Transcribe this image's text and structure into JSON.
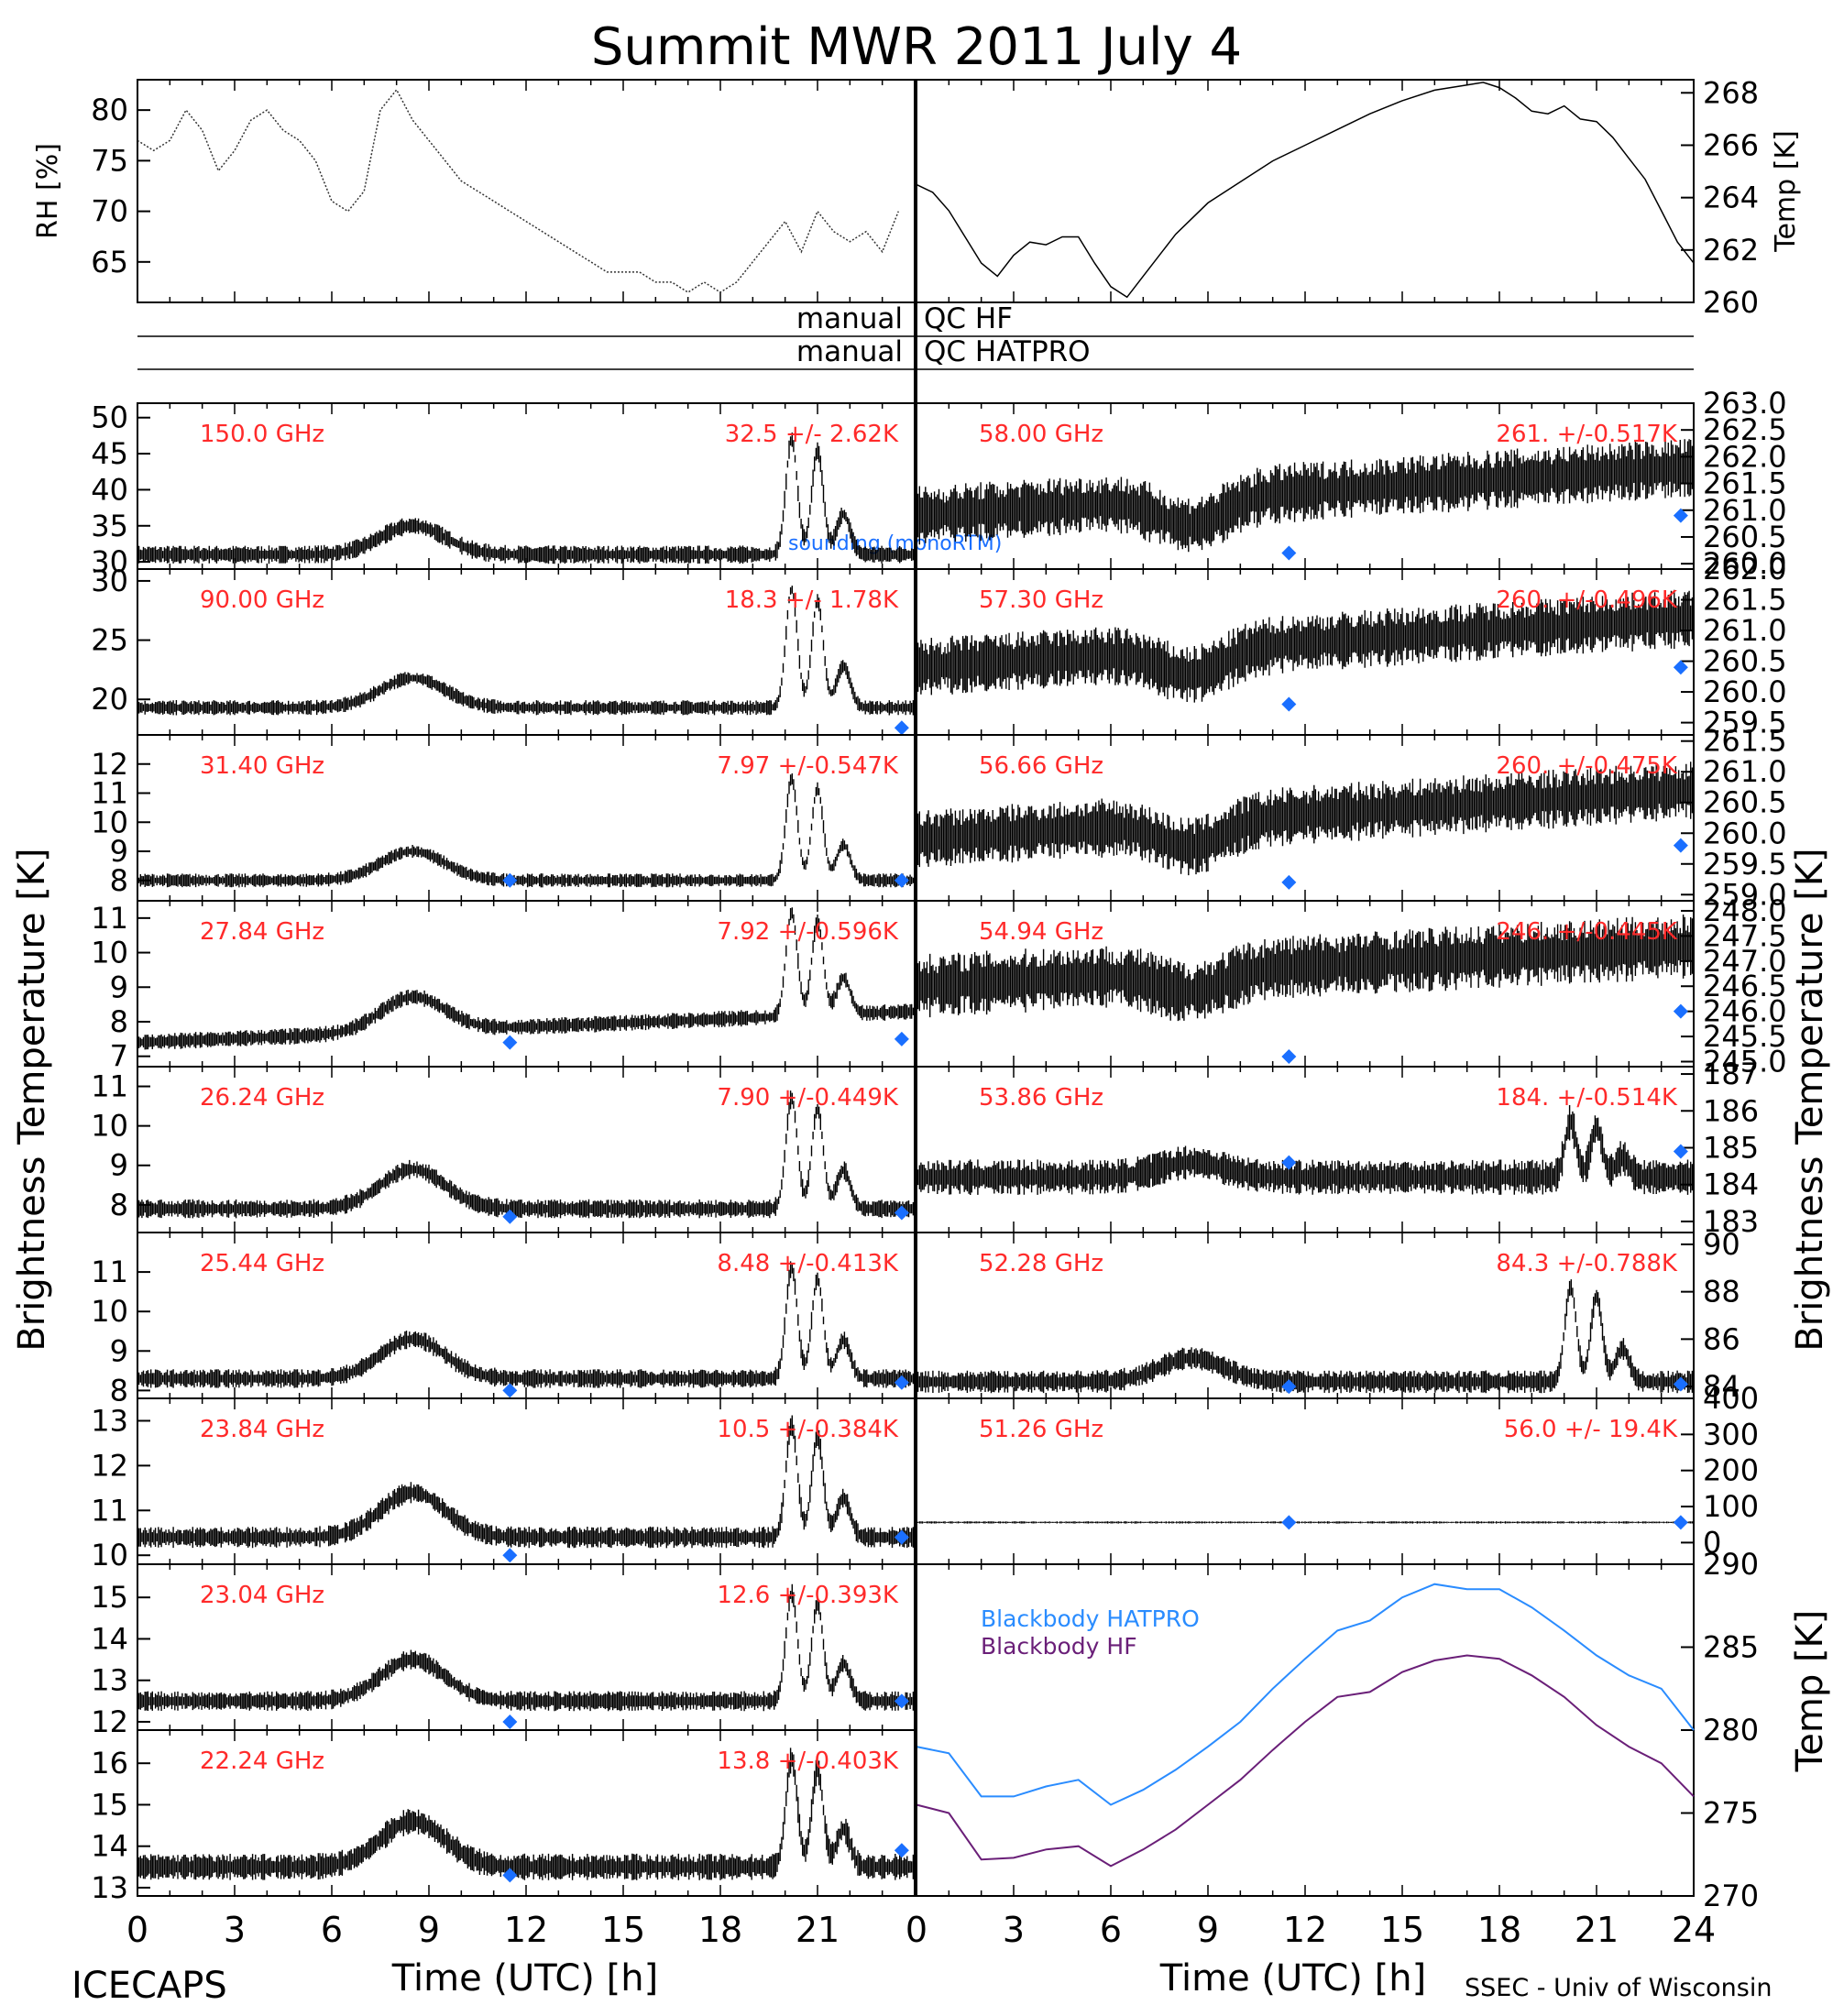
{
  "figure": {
    "title": "Summit MWR 2011 July  4",
    "footer_left": "ICECAPS",
    "footer_right": "SSEC - Univ of Wisconsin",
    "xlabel": "Time (UTC) [h]",
    "left_axis_label": "Brightness Temperature [K]",
    "right_axis_label": "Brightness Temperature [K]",
    "bottom_right_axis_label": "Temp [K]"
  },
  "colors": {
    "frequency_label": "#ff2a2a",
    "sounding_marker": "#1a6fff",
    "blackbody_hatpro": "#2a8cff",
    "blackbody_hf": "#6a1f78",
    "ink": "#000000"
  },
  "qc": {
    "hf_left": "manual",
    "hf_right": "QC HF",
    "hatpro_left": "manual",
    "hatpro_right": "QC HATPRO"
  },
  "legend": {
    "sounding_label": "sounding (monoRTM)"
  },
  "chart_data": [
    {
      "id": "rh",
      "type": "line",
      "side": "left",
      "ylabel": "RH [%]",
      "ylim": [
        61,
        83
      ],
      "yticks": [
        65,
        70,
        75,
        80
      ],
      "x": [
        0,
        0.5,
        1,
        1.5,
        2,
        2.5,
        3,
        3.5,
        4,
        4.5,
        5,
        5.5,
        6,
        6.5,
        7,
        7.5,
        8,
        8.5,
        9,
        9.5,
        10,
        10.5,
        11,
        11.5,
        12,
        12.5,
        13,
        13.5,
        14,
        14.5,
        15,
        15.5,
        16,
        16.5,
        17,
        17.5,
        18,
        18.5,
        19,
        19.5,
        20,
        20.5,
        21,
        21.5,
        22,
        22.5,
        23,
        23.5
      ],
      "y": [
        77,
        76,
        77,
        80,
        78,
        74,
        76,
        79,
        80,
        78,
        77,
        75,
        71,
        70,
        72,
        80,
        82,
        79,
        77,
        75,
        73,
        72,
        71,
        70,
        69,
        68,
        67,
        66,
        65,
        64,
        64,
        64,
        63,
        63,
        62,
        63,
        62,
        63,
        65,
        67,
        69,
        66,
        70,
        68,
        67,
        68,
        66,
        70
      ]
    },
    {
      "id": "temp",
      "type": "line",
      "side": "right",
      "ylabel": "Temp [K]",
      "ylim": [
        260,
        268.5
      ],
      "yticks": [
        260,
        262,
        264,
        266,
        268
      ],
      "x": [
        0,
        0.5,
        1,
        1.5,
        2,
        2.5,
        3,
        3.5,
        4,
        4.5,
        5,
        5.5,
        6,
        6.5,
        7,
        8,
        9,
        10,
        11,
        12,
        13,
        14,
        15,
        16,
        17,
        17.5,
        18,
        18.5,
        19,
        19.5,
        20,
        20.5,
        21,
        21.5,
        22,
        22.5,
        23,
        23.5,
        24
      ],
      "y": [
        264.5,
        264.2,
        263.5,
        262.5,
        261.5,
        261,
        261.8,
        262.3,
        262.2,
        262.5,
        262.5,
        261.5,
        260.6,
        260.2,
        261,
        262.6,
        263.8,
        264.6,
        265.4,
        266,
        266.6,
        267.2,
        267.7,
        268.1,
        268.3,
        268.4,
        268.2,
        267.8,
        267.3,
        267.2,
        267.5,
        267,
        266.9,
        266.3,
        265.5,
        264.7,
        263.5,
        262.3,
        261.5
      ]
    },
    {
      "id": "bb",
      "type": "line",
      "side": "right",
      "ylabel": "Temp [K]",
      "ylim": [
        270,
        290
      ],
      "yticks": [
        270,
        275,
        280,
        285,
        290
      ],
      "series": [
        {
          "name": "Blackbody HATPRO",
          "x": [
            0,
            1,
            2,
            3,
            4,
            5,
            6,
            7,
            8,
            9,
            10,
            11,
            12,
            13,
            14,
            15,
            16,
            17,
            18,
            19,
            20,
            21,
            22,
            23,
            24
          ],
          "y": [
            279,
            278.6,
            276,
            276,
            276.6,
            277,
            275.5,
            276.4,
            277.6,
            279,
            280.5,
            282.5,
            284.3,
            286,
            286.6,
            288,
            288.8,
            288.5,
            288.5,
            287.4,
            286,
            284.5,
            283.3,
            282.5,
            280
          ]
        },
        {
          "name": "Blackbody HF",
          "x": [
            0,
            1,
            2,
            3,
            4,
            5,
            6,
            7,
            8,
            9,
            10,
            11,
            12,
            13,
            14,
            15,
            16,
            17,
            18,
            19,
            20,
            21,
            22,
            23,
            24
          ],
          "y": [
            275.5,
            275,
            272.2,
            272.3,
            272.8,
            273,
            271.8,
            272.8,
            274,
            275.5,
            277,
            278.8,
            280.5,
            282,
            282.3,
            283.5,
            284.2,
            284.5,
            284.3,
            283.3,
            282,
            280.3,
            279,
            278,
            276
          ]
        }
      ]
    },
    {
      "id": "hf150",
      "type": "scatter",
      "side": "left",
      "freq": "150.0 GHz",
      "stat": "32.5 +/-  2.62K",
      "ylim": [
        29,
        52
      ],
      "yticks": [
        30,
        35,
        40,
        45,
        50
      ],
      "base": 31,
      "bump": 4,
      "peak": 16,
      "noise": 0.8,
      "drift": 0,
      "sounding": []
    },
    {
      "id": "hf90",
      "type": "scatter",
      "side": "left",
      "freq": "90.00 GHz",
      "stat": "18.3 +/-  1.78K",
      "ylim": [
        17,
        31
      ],
      "yticks": [
        20,
        25,
        30
      ],
      "base": 19.3,
      "bump": 2.5,
      "peak": 10,
      "noise": 0.4,
      "drift": 0,
      "sounding": [
        [
          23.6,
          17.6
        ]
      ]
    },
    {
      "id": "k3140",
      "type": "scatter",
      "side": "left",
      "freq": "31.40 GHz",
      "stat": "7.97 +/-0.547K",
      "ylim": [
        7.3,
        13
      ],
      "yticks": [
        8,
        9,
        10,
        11,
        12
      ],
      "base": 8,
      "bump": 1,
      "peak": 3.5,
      "noise": 0.15,
      "drift": 0,
      "sounding": [
        [
          11.5,
          8.0
        ],
        [
          23.6,
          8.0
        ]
      ]
    },
    {
      "id": "k2784",
      "type": "scatter",
      "side": "left",
      "freq": "27.84 GHz",
      "stat": "7.92 +/-0.596K",
      "ylim": [
        6.7,
        11.5
      ],
      "yticks": [
        7,
        8,
        9,
        10,
        11
      ],
      "base": 7.4,
      "bump": 1,
      "peak": 3,
      "noise": 0.15,
      "drift": 0.9,
      "sounding": [
        [
          11.5,
          7.4
        ],
        [
          23.6,
          7.5
        ]
      ]
    },
    {
      "id": "k2624",
      "type": "scatter",
      "side": "left",
      "freq": "26.24 GHz",
      "stat": "7.90 +/-0.449K",
      "ylim": [
        7.3,
        11.5
      ],
      "yticks": [
        8,
        9,
        10,
        11
      ],
      "base": 7.9,
      "bump": 1,
      "peak": 2.8,
      "noise": 0.15,
      "drift": 0,
      "sounding": [
        [
          11.5,
          7.7
        ],
        [
          23.6,
          7.8
        ]
      ]
    },
    {
      "id": "k2544",
      "type": "scatter",
      "side": "left",
      "freq": "25.44 GHz",
      "stat": "8.48 +/-0.413K",
      "ylim": [
        7.8,
        12
      ],
      "yticks": [
        8,
        9,
        10,
        11
      ],
      "base": 8.3,
      "bump": 1,
      "peak": 2.8,
      "noise": 0.15,
      "drift": 0,
      "sounding": [
        [
          11.5,
          8.0
        ],
        [
          23.6,
          8.2
        ]
      ]
    },
    {
      "id": "k2384",
      "type": "scatter",
      "side": "left",
      "freq": "23.84 GHz",
      "stat": "10.5 +/-0.384K",
      "ylim": [
        9.8,
        13.5
      ],
      "yticks": [
        10,
        11,
        12,
        13
      ],
      "base": 10.4,
      "bump": 1,
      "peak": 2.5,
      "noise": 0.15,
      "drift": 0,
      "sounding": [
        [
          11.5,
          10.0
        ],
        [
          23.6,
          10.4
        ]
      ]
    },
    {
      "id": "k2304",
      "type": "scatter",
      "side": "left",
      "freq": "23.04 GHz",
      "stat": "12.6 +/-0.393K",
      "ylim": [
        11.8,
        15.8
      ],
      "yticks": [
        12,
        13,
        14,
        15
      ],
      "base": 12.5,
      "bump": 1,
      "peak": 2.6,
      "noise": 0.15,
      "drift": 0,
      "sounding": [
        [
          11.5,
          12.0
        ],
        [
          23.6,
          12.5
        ]
      ]
    },
    {
      "id": "k2224",
      "type": "scatter",
      "side": "left",
      "freq": "22.24 GHz",
      "stat": "13.8 +/-0.403K",
      "ylim": [
        12.8,
        16.8
      ],
      "yticks": [
        13,
        14,
        15,
        16
      ],
      "base": 13.5,
      "bump": 1.1,
      "peak": 2.6,
      "noise": 0.2,
      "drift": 0,
      "sounding": [
        [
          11.5,
          13.3
        ],
        [
          23.6,
          13.9
        ]
      ]
    },
    {
      "id": "v5800",
      "type": "scatter",
      "side": "right",
      "freq": "58.00 GHz",
      "stat": "261. +/-0.517K",
      "ylim": [
        259.9,
        263
      ],
      "yticks": [
        260.0,
        260.5,
        261.0,
        261.5,
        262.0,
        262.5,
        263.0
      ],
      "base": 260.9,
      "bump": -0.5,
      "peak": 0,
      "noise": 0.35,
      "drift": 0.9,
      "sounding": [
        [
          11.5,
          260.2
        ],
        [
          23.6,
          260.9
        ]
      ]
    },
    {
      "id": "v5730",
      "type": "scatter",
      "side": "right",
      "freq": "57.30 GHz",
      "stat": "260. +/-0.496K",
      "ylim": [
        259.3,
        262
      ],
      "yticks": [
        259.5,
        260.0,
        260.5,
        261.0,
        261.5,
        262.0
      ],
      "base": 260.4,
      "bump": -0.4,
      "peak": 0,
      "noise": 0.3,
      "drift": 0.8,
      "sounding": [
        [
          11.5,
          259.8
        ],
        [
          23.6,
          260.4
        ]
      ]
    },
    {
      "id": "v5666",
      "type": "scatter",
      "side": "right",
      "freq": "56.66 GHz",
      "stat": "260. +/-0.475K",
      "ylim": [
        258.9,
        261.6
      ],
      "yticks": [
        259.0,
        259.5,
        260.0,
        260.5,
        261.0,
        261.5
      ],
      "base": 259.9,
      "bump": -0.4,
      "peak": 0,
      "noise": 0.3,
      "drift": 0.8,
      "sounding": [
        [
          11.5,
          259.2
        ],
        [
          23.6,
          259.8
        ]
      ]
    },
    {
      "id": "v5494",
      "type": "scatter",
      "side": "right",
      "freq": "54.94 GHz",
      "stat": "246. +/-0.445K",
      "ylim": [
        244.9,
        248.2
      ],
      "yticks": [
        245.0,
        245.5,
        246.0,
        246.5,
        247.0,
        247.5,
        248.0
      ],
      "base": 246.5,
      "bump": -0.4,
      "peak": 0,
      "noise": 0.4,
      "drift": 0.8,
      "sounding": [
        [
          11.5,
          245.1
        ],
        [
          23.6,
          246.0
        ]
      ]
    },
    {
      "id": "v5386",
      "type": "scatter",
      "side": "right",
      "freq": "53.86 GHz",
      "stat": "184. +/-0.514K",
      "ylim": [
        182.7,
        187.2
      ],
      "yticks": [
        183,
        184,
        185,
        186,
        187
      ],
      "base": 184.2,
      "bump": 0.4,
      "peak": 1.5,
      "noise": 0.3,
      "drift": 0,
      "sounding": [
        [
          11.5,
          184.6
        ],
        [
          23.6,
          184.9
        ]
      ]
    },
    {
      "id": "v5228",
      "type": "scatter",
      "side": "right",
      "freq": "52.28 GHz",
      "stat": "84.3 +/-0.788K",
      "ylim": [
        83.5,
        90.5
      ],
      "yticks": [
        84,
        86,
        88,
        90
      ],
      "base": 84.2,
      "bump": 1,
      "peak": 4,
      "noise": 0.3,
      "drift": 0,
      "sounding": [
        [
          11.5,
          84
        ],
        [
          23.6,
          84.1
        ]
      ]
    },
    {
      "id": "v5126",
      "type": "scatter",
      "side": "right",
      "freq": "51.26 GHz",
      "stat": "56.0 +/- 19.4K",
      "ylim": [
        -60,
        400
      ],
      "yticks": [
        0,
        100,
        200,
        300,
        400
      ],
      "base": 56,
      "bump": 0,
      "peak": 0,
      "noise": 2,
      "drift": 0,
      "sounding": [
        [
          11.5,
          56
        ],
        [
          23.6,
          56
        ]
      ]
    }
  ]
}
